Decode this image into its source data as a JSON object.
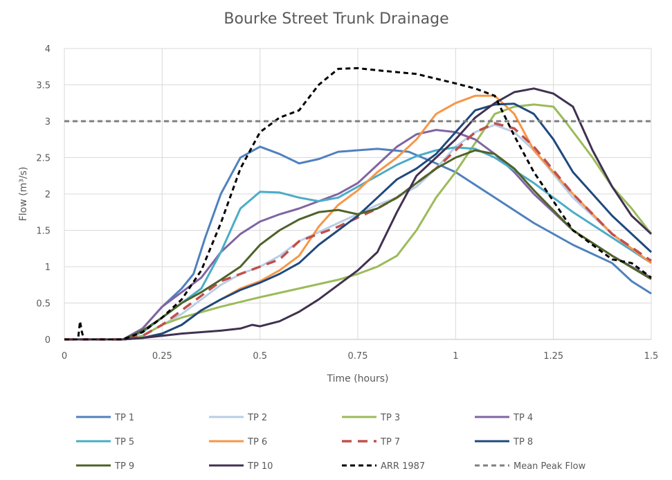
{
  "chart_data": {
    "type": "line",
    "title": "Bourke Street Trunk Drainage",
    "xlabel": "Time (hours)",
    "ylabel": "Flow (m³/s)",
    "xlim": [
      0,
      1.5
    ],
    "ylim": [
      0,
      4
    ],
    "x_ticks": [
      0,
      0.25,
      0.5,
      0.75,
      1,
      1.25,
      1.5
    ],
    "x_tick_labels": [
      "0",
      "0.25",
      "0.5",
      "0.75",
      "1",
      "1.25",
      "1.5"
    ],
    "y_ticks": [
      0,
      0.5,
      1,
      1.5,
      2,
      2.5,
      3,
      3.5,
      4
    ],
    "y_tick_labels": [
      "0",
      "0.5",
      "1",
      "1.5",
      "2",
      "2.5",
      "3",
      "3.5",
      "4"
    ],
    "grid": true,
    "legend_position": "bottom",
    "series": [
      {
        "name": "TP 1",
        "color": "#4f81bd",
        "dash": "solid",
        "width": 3,
        "points": [
          [
            0,
            0
          ],
          [
            0.15,
            0
          ],
          [
            0.2,
            0.15
          ],
          [
            0.25,
            0.45
          ],
          [
            0.3,
            0.7
          ],
          [
            0.33,
            0.9
          ],
          [
            0.36,
            1.4
          ],
          [
            0.4,
            2.0
          ],
          [
            0.45,
            2.5
          ],
          [
            0.5,
            2.65
          ],
          [
            0.55,
            2.55
          ],
          [
            0.6,
            2.42
          ],
          [
            0.65,
            2.48
          ],
          [
            0.7,
            2.58
          ],
          [
            0.8,
            2.62
          ],
          [
            0.88,
            2.58
          ],
          [
            0.95,
            2.42
          ],
          [
            1.0,
            2.3
          ],
          [
            1.1,
            1.95
          ],
          [
            1.2,
            1.6
          ],
          [
            1.3,
            1.3
          ],
          [
            1.4,
            1.05
          ],
          [
            1.45,
            0.8
          ],
          [
            1.5,
            0.63
          ]
        ]
      },
      {
        "name": "TP 2",
        "color": "#b9cde5",
        "dash": "solid",
        "width": 3,
        "points": [
          [
            0,
            0
          ],
          [
            0.15,
            0
          ],
          [
            0.2,
            0.05
          ],
          [
            0.25,
            0.2
          ],
          [
            0.3,
            0.35
          ],
          [
            0.35,
            0.55
          ],
          [
            0.4,
            0.75
          ],
          [
            0.45,
            0.9
          ],
          [
            0.5,
            1.0
          ],
          [
            0.55,
            1.15
          ],
          [
            0.6,
            1.35
          ],
          [
            0.7,
            1.6
          ],
          [
            0.8,
            1.85
          ],
          [
            0.85,
            1.95
          ],
          [
            0.9,
            2.1
          ],
          [
            0.95,
            2.35
          ],
          [
            1.0,
            2.65
          ],
          [
            1.05,
            2.85
          ],
          [
            1.1,
            2.95
          ],
          [
            1.15,
            2.85
          ],
          [
            1.2,
            2.6
          ],
          [
            1.3,
            1.95
          ],
          [
            1.4,
            1.45
          ],
          [
            1.5,
            1.05
          ]
        ]
      },
      {
        "name": "TP 3",
        "color": "#9bbb59",
        "dash": "solid",
        "width": 3,
        "points": [
          [
            0,
            0
          ],
          [
            0.15,
            0
          ],
          [
            0.2,
            0.05
          ],
          [
            0.25,
            0.2
          ],
          [
            0.3,
            0.3
          ],
          [
            0.4,
            0.45
          ],
          [
            0.5,
            0.58
          ],
          [
            0.6,
            0.7
          ],
          [
            0.7,
            0.82
          ],
          [
            0.75,
            0.9
          ],
          [
            0.8,
            1.0
          ],
          [
            0.85,
            1.15
          ],
          [
            0.9,
            1.5
          ],
          [
            0.95,
            1.95
          ],
          [
            1.0,
            2.3
          ],
          [
            1.05,
            2.7
          ],
          [
            1.1,
            3.1
          ],
          [
            1.15,
            3.2
          ],
          [
            1.2,
            3.23
          ],
          [
            1.25,
            3.2
          ],
          [
            1.28,
            3.0
          ],
          [
            1.35,
            2.5
          ],
          [
            1.4,
            2.1
          ],
          [
            1.45,
            1.8
          ],
          [
            1.5,
            1.45
          ]
        ]
      },
      {
        "name": "TP 4",
        "color": "#8064a2",
        "dash": "solid",
        "width": 3,
        "points": [
          [
            0,
            0
          ],
          [
            0.15,
            0
          ],
          [
            0.2,
            0.15
          ],
          [
            0.25,
            0.45
          ],
          [
            0.3,
            0.65
          ],
          [
            0.35,
            0.85
          ],
          [
            0.4,
            1.2
          ],
          [
            0.45,
            1.45
          ],
          [
            0.5,
            1.62
          ],
          [
            0.55,
            1.72
          ],
          [
            0.6,
            1.8
          ],
          [
            0.65,
            1.9
          ],
          [
            0.7,
            2.0
          ],
          [
            0.75,
            2.15
          ],
          [
            0.8,
            2.4
          ],
          [
            0.85,
            2.65
          ],
          [
            0.9,
            2.82
          ],
          [
            0.95,
            2.88
          ],
          [
            1.0,
            2.85
          ],
          [
            1.05,
            2.75
          ],
          [
            1.1,
            2.55
          ],
          [
            1.15,
            2.3
          ],
          [
            1.2,
            2.0
          ],
          [
            1.3,
            1.5
          ],
          [
            1.4,
            1.15
          ],
          [
            1.5,
            0.85
          ]
        ]
      },
      {
        "name": "TP 5",
        "color": "#4bacc6",
        "dash": "solid",
        "width": 3,
        "points": [
          [
            0,
            0
          ],
          [
            0.15,
            0
          ],
          [
            0.2,
            0.1
          ],
          [
            0.25,
            0.3
          ],
          [
            0.3,
            0.5
          ],
          [
            0.35,
            0.7
          ],
          [
            0.4,
            1.2
          ],
          [
            0.45,
            1.8
          ],
          [
            0.5,
            2.03
          ],
          [
            0.55,
            2.02
          ],
          [
            0.6,
            1.95
          ],
          [
            0.65,
            1.9
          ],
          [
            0.7,
            1.95
          ],
          [
            0.75,
            2.1
          ],
          [
            0.8,
            2.25
          ],
          [
            0.85,
            2.4
          ],
          [
            0.9,
            2.52
          ],
          [
            0.95,
            2.6
          ],
          [
            1.0,
            2.64
          ],
          [
            1.05,
            2.62
          ],
          [
            1.1,
            2.5
          ],
          [
            1.2,
            2.15
          ],
          [
            1.3,
            1.75
          ],
          [
            1.4,
            1.4
          ],
          [
            1.5,
            1.05
          ]
        ]
      },
      {
        "name": "TP 6",
        "color": "#f79646",
        "dash": "solid",
        "width": 3,
        "points": [
          [
            0,
            0
          ],
          [
            0.15,
            0
          ],
          [
            0.2,
            0.02
          ],
          [
            0.25,
            0.08
          ],
          [
            0.3,
            0.2
          ],
          [
            0.35,
            0.4
          ],
          [
            0.4,
            0.55
          ],
          [
            0.45,
            0.7
          ],
          [
            0.5,
            0.8
          ],
          [
            0.55,
            0.95
          ],
          [
            0.6,
            1.15
          ],
          [
            0.65,
            1.55
          ],
          [
            0.7,
            1.85
          ],
          [
            0.75,
            2.05
          ],
          [
            0.8,
            2.3
          ],
          [
            0.85,
            2.5
          ],
          [
            0.9,
            2.75
          ],
          [
            0.95,
            3.1
          ],
          [
            1.0,
            3.25
          ],
          [
            1.05,
            3.35
          ],
          [
            1.1,
            3.35
          ],
          [
            1.15,
            3.1
          ],
          [
            1.2,
            2.6
          ],
          [
            1.3,
            2.0
          ],
          [
            1.4,
            1.45
          ],
          [
            1.5,
            1.05
          ]
        ]
      },
      {
        "name": "TP 7",
        "color": "#c0504d",
        "dash": "long",
        "width": 3.5,
        "points": [
          [
            0,
            0
          ],
          [
            0.15,
            0
          ],
          [
            0.2,
            0.05
          ],
          [
            0.25,
            0.2
          ],
          [
            0.3,
            0.4
          ],
          [
            0.35,
            0.6
          ],
          [
            0.4,
            0.8
          ],
          [
            0.45,
            0.9
          ],
          [
            0.5,
            1.0
          ],
          [
            0.55,
            1.1
          ],
          [
            0.6,
            1.35
          ],
          [
            0.7,
            1.55
          ],
          [
            0.8,
            1.8
          ],
          [
            0.85,
            1.95
          ],
          [
            0.9,
            2.15
          ],
          [
            0.95,
            2.35
          ],
          [
            1.0,
            2.6
          ],
          [
            1.05,
            2.85
          ],
          [
            1.1,
            2.97
          ],
          [
            1.15,
            2.9
          ],
          [
            1.2,
            2.65
          ],
          [
            1.3,
            2.0
          ],
          [
            1.4,
            1.45
          ],
          [
            1.5,
            1.08
          ]
        ]
      },
      {
        "name": "TP 8",
        "color": "#1f497d",
        "dash": "solid",
        "width": 3,
        "points": [
          [
            0,
            0
          ],
          [
            0.15,
            0
          ],
          [
            0.2,
            0.02
          ],
          [
            0.25,
            0.08
          ],
          [
            0.3,
            0.2
          ],
          [
            0.35,
            0.4
          ],
          [
            0.4,
            0.55
          ],
          [
            0.45,
            0.68
          ],
          [
            0.5,
            0.78
          ],
          [
            0.55,
            0.9
          ],
          [
            0.6,
            1.05
          ],
          [
            0.65,
            1.3
          ],
          [
            0.7,
            1.5
          ],
          [
            0.75,
            1.7
          ],
          [
            0.8,
            1.95
          ],
          [
            0.85,
            2.2
          ],
          [
            0.9,
            2.35
          ],
          [
            0.95,
            2.55
          ],
          [
            1.0,
            2.85
          ],
          [
            1.05,
            3.15
          ],
          [
            1.1,
            3.23
          ],
          [
            1.15,
            3.24
          ],
          [
            1.2,
            3.1
          ],
          [
            1.25,
            2.75
          ],
          [
            1.3,
            2.3
          ],
          [
            1.4,
            1.7
          ],
          [
            1.5,
            1.2
          ]
        ]
      },
      {
        "name": "TP 9",
        "color": "#4f6228",
        "dash": "solid",
        "width": 3,
        "points": [
          [
            0,
            0
          ],
          [
            0.15,
            0
          ],
          [
            0.2,
            0.12
          ],
          [
            0.25,
            0.3
          ],
          [
            0.3,
            0.5
          ],
          [
            0.35,
            0.65
          ],
          [
            0.4,
            0.82
          ],
          [
            0.45,
            1.0
          ],
          [
            0.5,
            1.3
          ],
          [
            0.55,
            1.5
          ],
          [
            0.6,
            1.65
          ],
          [
            0.65,
            1.75
          ],
          [
            0.7,
            1.78
          ],
          [
            0.75,
            1.72
          ],
          [
            0.8,
            1.8
          ],
          [
            0.85,
            1.95
          ],
          [
            0.9,
            2.15
          ],
          [
            0.95,
            2.35
          ],
          [
            1.0,
            2.5
          ],
          [
            1.05,
            2.6
          ],
          [
            1.1,
            2.55
          ],
          [
            1.15,
            2.35
          ],
          [
            1.2,
            2.05
          ],
          [
            1.3,
            1.5
          ],
          [
            1.4,
            1.15
          ],
          [
            1.5,
            0.83
          ]
        ]
      },
      {
        "name": "TP 10",
        "color": "#403151",
        "dash": "solid",
        "width": 3,
        "points": [
          [
            0,
            0
          ],
          [
            0.15,
            0
          ],
          [
            0.2,
            0.02
          ],
          [
            0.25,
            0.05
          ],
          [
            0.3,
            0.08
          ],
          [
            0.35,
            0.1
          ],
          [
            0.4,
            0.12
          ],
          [
            0.45,
            0.15
          ],
          [
            0.48,
            0.2
          ],
          [
            0.5,
            0.18
          ],
          [
            0.55,
            0.25
          ],
          [
            0.6,
            0.38
          ],
          [
            0.65,
            0.55
          ],
          [
            0.7,
            0.75
          ],
          [
            0.75,
            0.95
          ],
          [
            0.8,
            1.2
          ],
          [
            0.85,
            1.75
          ],
          [
            0.9,
            2.25
          ],
          [
            0.95,
            2.5
          ],
          [
            1.0,
            2.75
          ],
          [
            1.05,
            3.05
          ],
          [
            1.1,
            3.25
          ],
          [
            1.15,
            3.4
          ],
          [
            1.2,
            3.45
          ],
          [
            1.25,
            3.38
          ],
          [
            1.3,
            3.2
          ],
          [
            1.35,
            2.6
          ],
          [
            1.4,
            2.1
          ],
          [
            1.45,
            1.7
          ],
          [
            1.5,
            1.45
          ]
        ]
      },
      {
        "name": "ARR 1987",
        "color": "#000000",
        "dash": "short",
        "width": 3,
        "points": [
          [
            0,
            0
          ],
          [
            0.035,
            0
          ],
          [
            0.04,
            0.25
          ],
          [
            0.045,
            0.1
          ],
          [
            0.05,
            0
          ],
          [
            0.15,
            0
          ],
          [
            0.2,
            0.1
          ],
          [
            0.25,
            0.3
          ],
          [
            0.3,
            0.55
          ],
          [
            0.35,
            0.95
          ],
          [
            0.4,
            1.6
          ],
          [
            0.45,
            2.35
          ],
          [
            0.5,
            2.85
          ],
          [
            0.55,
            3.05
          ],
          [
            0.6,
            3.15
          ],
          [
            0.65,
            3.5
          ],
          [
            0.7,
            3.72
          ],
          [
            0.75,
            3.73
          ],
          [
            0.8,
            3.7
          ],
          [
            0.9,
            3.65
          ],
          [
            1.0,
            3.52
          ],
          [
            1.05,
            3.45
          ],
          [
            1.1,
            3.35
          ],
          [
            1.15,
            2.8
          ],
          [
            1.2,
            2.3
          ],
          [
            1.25,
            1.9
          ],
          [
            1.3,
            1.5
          ],
          [
            1.35,
            1.3
          ],
          [
            1.4,
            1.1
          ],
          [
            1.45,
            1.05
          ],
          [
            1.5,
            0.85
          ]
        ]
      },
      {
        "name": "Mean Peak Flow",
        "color": "#7f7f7f",
        "dash": "short",
        "width": 3,
        "points": [
          [
            0,
            3.0
          ],
          [
            1.5,
            3.0
          ]
        ]
      }
    ]
  }
}
